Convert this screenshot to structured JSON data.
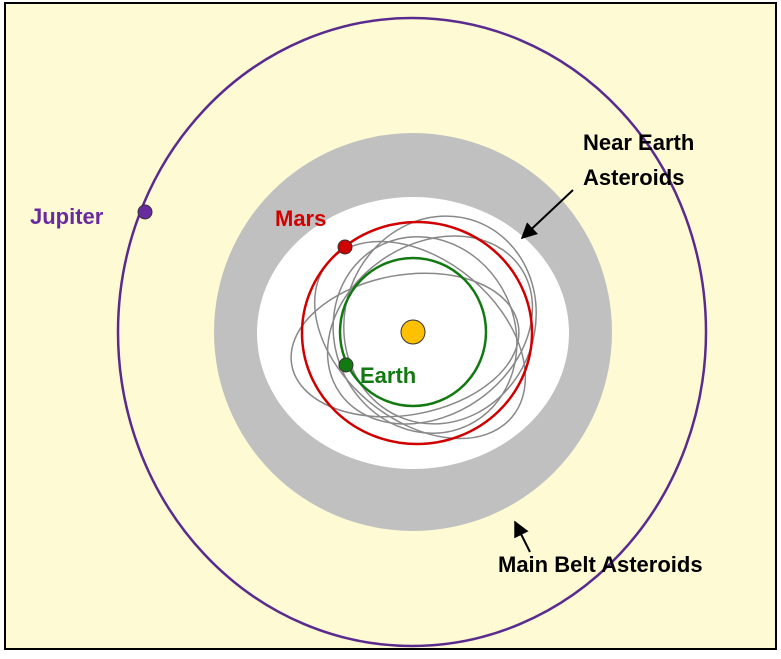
{
  "labels": {
    "jupiter": "Jupiter",
    "mars": "Mars",
    "earth": "Earth",
    "near_earth": [
      "Near Earth",
      "Asteroids"
    ],
    "main_belt": "Main Belt Asteroids"
  }
}
